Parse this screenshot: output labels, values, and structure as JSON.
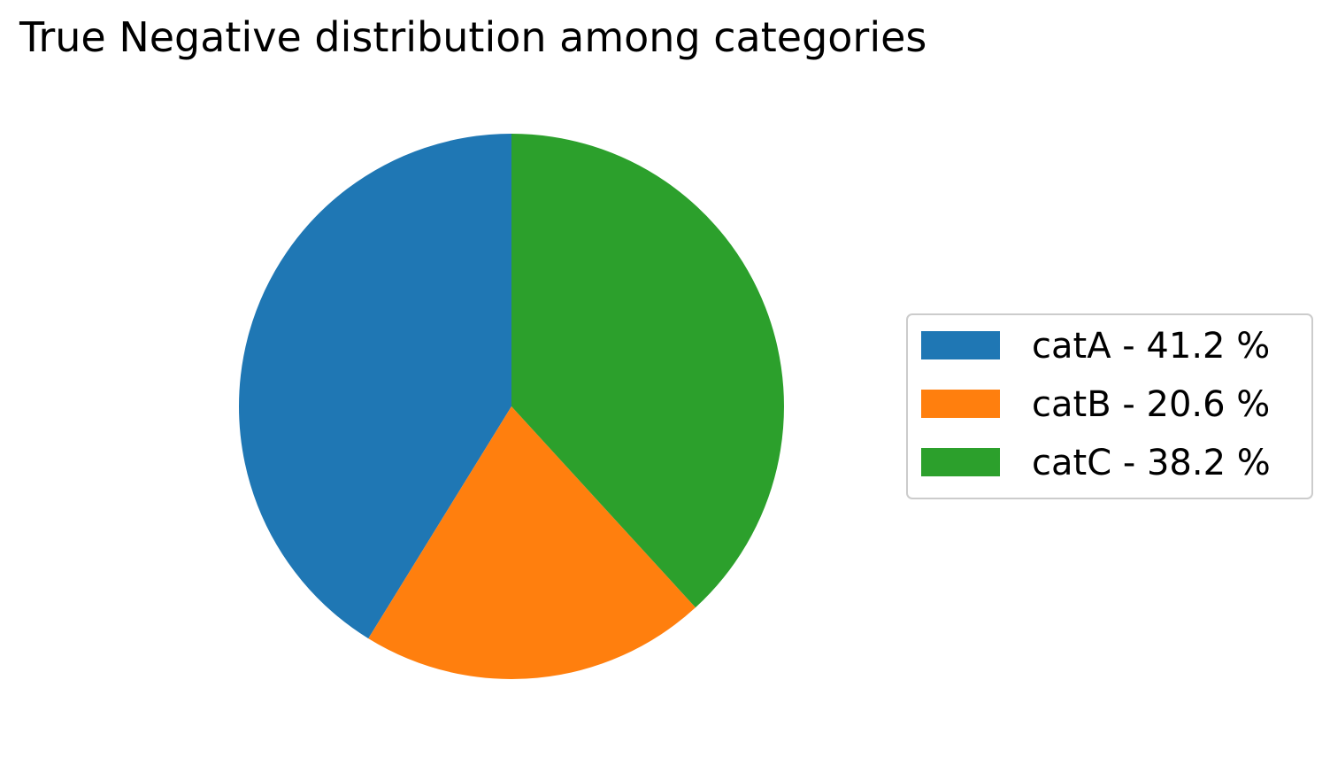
{
  "chart_data": {
    "type": "pie",
    "title": "True Negative distribution among categories",
    "labels": [
      "catA",
      "catB",
      "catC"
    ],
    "values": [
      41.2,
      20.6,
      38.2
    ],
    "legend_labels": [
      "catA - 41.2 %",
      "catB - 20.6 %",
      "catC - 38.2 %"
    ],
    "colors": [
      "#1f77b4",
      "#ff7f0e",
      "#2ca02c"
    ],
    "start_angle_deg": 90,
    "direction": "counterclockwise",
    "legend_position": "center-right"
  }
}
